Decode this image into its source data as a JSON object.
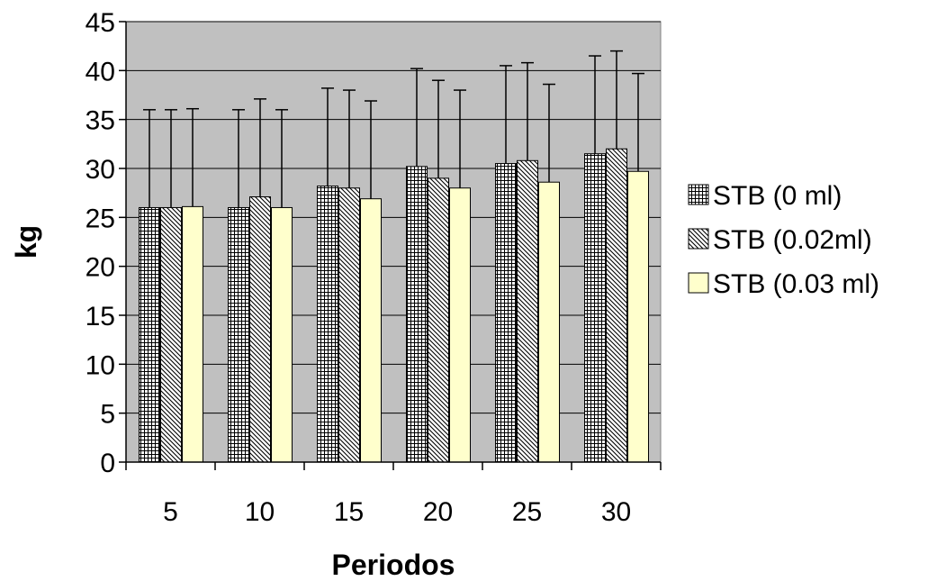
{
  "chart_data": {
    "type": "bar",
    "title": "",
    "xlabel": "Periodos",
    "ylabel": "kg",
    "categories": [
      "5",
      "10",
      "15",
      "20",
      "25",
      "30"
    ],
    "ylim": [
      0,
      45
    ],
    "yticks": [
      0,
      5,
      10,
      15,
      20,
      25,
      30,
      35,
      40,
      45
    ],
    "grid": true,
    "legend_position": "right",
    "plot_background": "#c0c0c0",
    "series": [
      {
        "name": "STB (0 ml)",
        "pattern": "grid",
        "fill": "#ffffff",
        "values": [
          26,
          26,
          28.2,
          30.2,
          30.5,
          31.5
        ],
        "error_plus": [
          10,
          10,
          10,
          10,
          10,
          10
        ]
      },
      {
        "name": "STB (0.02ml)",
        "pattern": "diagonal",
        "fill": "#ffffff",
        "values": [
          26,
          27.1,
          28,
          29,
          30.8,
          32
        ],
        "error_plus": [
          10,
          10,
          10,
          10,
          10,
          10
        ]
      },
      {
        "name": "STB (0.03 ml)",
        "pattern": "solid",
        "fill": "#ffffcc",
        "values": [
          26.1,
          26,
          26.9,
          28,
          28.6,
          29.7
        ],
        "error_plus": [
          10,
          10,
          10,
          10,
          10,
          10
        ]
      }
    ]
  }
}
